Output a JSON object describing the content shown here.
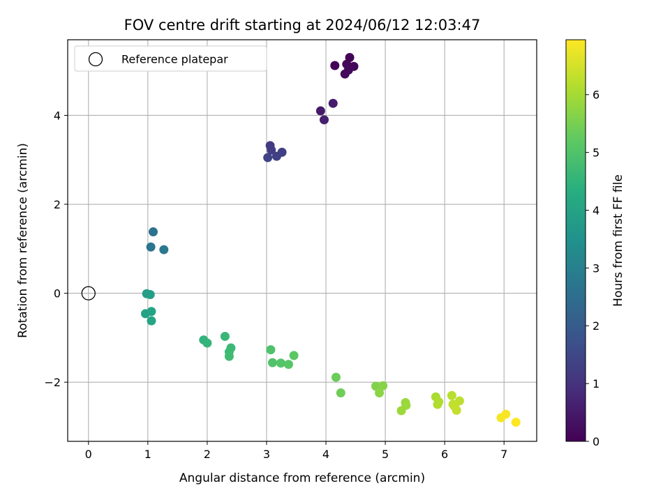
{
  "chart_data": {
    "type": "scatter",
    "title": "FOV centre drift starting at 2024/06/12 12:03:47",
    "xlabel": "Angular distance from reference (arcmin)",
    "ylabel": "Rotation from reference (arcmin)",
    "xlim": [
      -0.35,
      7.55
    ],
    "ylim": [
      -3.33,
      5.7
    ],
    "xticks": [
      0,
      1,
      2,
      3,
      4,
      5,
      6,
      7
    ],
    "yticks": [
      -2,
      0,
      2,
      4
    ],
    "xtick_labels": [
      "0",
      "1",
      "2",
      "3",
      "4",
      "5",
      "6",
      "7"
    ],
    "ytick_labels": [
      "−2",
      "0",
      "2",
      "4"
    ],
    "grid": true,
    "legend": {
      "position": "top-left",
      "entries": [
        "Reference platepar"
      ]
    },
    "reference_point": {
      "name": "Reference platepar",
      "x": 0,
      "y": 0,
      "marker": "hollow-circle"
    },
    "colorbar": {
      "label": "Hours from first FF file",
      "min": 0,
      "max": 6.95,
      "ticks": [
        0,
        1,
        2,
        3,
        4,
        5,
        6
      ],
      "tick_labels": [
        "0",
        "1",
        "2",
        "3",
        "4",
        "5",
        "6"
      ],
      "colormap": "viridis"
    },
    "points": [
      {
        "x": 4.4,
        "y": 5.3,
        "c": 0.05
      },
      {
        "x": 4.15,
        "y": 5.12,
        "c": 0.08
      },
      {
        "x": 4.35,
        "y": 5.15,
        "c": 0.12
      },
      {
        "x": 4.47,
        "y": 5.1,
        "c": 0.1
      },
      {
        "x": 4.38,
        "y": 5.02,
        "c": 0.15
      },
      {
        "x": 4.32,
        "y": 4.93,
        "c": 0.18
      },
      {
        "x": 4.12,
        "y": 4.27,
        "c": 0.55
      },
      {
        "x": 3.91,
        "y": 4.1,
        "c": 0.5
      },
      {
        "x": 3.97,
        "y": 3.9,
        "c": 0.6
      },
      {
        "x": 3.06,
        "y": 3.32,
        "c": 1.2
      },
      {
        "x": 3.08,
        "y": 3.22,
        "c": 1.25
      },
      {
        "x": 3.26,
        "y": 3.17,
        "c": 1.3
      },
      {
        "x": 3.17,
        "y": 3.08,
        "c": 1.35
      },
      {
        "x": 3.02,
        "y": 3.05,
        "c": 1.4
      },
      {
        "x": 1.09,
        "y": 1.38,
        "c": 2.6
      },
      {
        "x": 1.05,
        "y": 1.04,
        "c": 2.7
      },
      {
        "x": 1.27,
        "y": 0.98,
        "c": 2.8
      },
      {
        "x": 0.98,
        "y": -0.01,
        "c": 3.85
      },
      {
        "x": 1.04,
        "y": -0.03,
        "c": 3.9
      },
      {
        "x": 0.96,
        "y": -0.46,
        "c": 3.95
      },
      {
        "x": 1.06,
        "y": -0.41,
        "c": 4.0
      },
      {
        "x": 1.06,
        "y": -0.62,
        "c": 4.05
      },
      {
        "x": 1.94,
        "y": -1.05,
        "c": 4.5
      },
      {
        "x": 2.0,
        "y": -1.12,
        "c": 4.55
      },
      {
        "x": 2.3,
        "y": -0.97,
        "c": 4.6
      },
      {
        "x": 2.4,
        "y": -1.23,
        "c": 4.65
      },
      {
        "x": 2.37,
        "y": -1.32,
        "c": 4.7
      },
      {
        "x": 2.37,
        "y": -1.42,
        "c": 4.75
      },
      {
        "x": 3.07,
        "y": -1.27,
        "c": 4.95
      },
      {
        "x": 3.1,
        "y": -1.56,
        "c": 5.0
      },
      {
        "x": 3.24,
        "y": -1.57,
        "c": 5.05
      },
      {
        "x": 3.37,
        "y": -1.6,
        "c": 5.1
      },
      {
        "x": 3.46,
        "y": -1.4,
        "c": 5.15
      },
      {
        "x": 4.17,
        "y": -1.89,
        "c": 5.35
      },
      {
        "x": 4.25,
        "y": -2.24,
        "c": 5.4
      },
      {
        "x": 4.84,
        "y": -2.09,
        "c": 5.6
      },
      {
        "x": 4.96,
        "y": -2.08,
        "c": 5.65
      },
      {
        "x": 4.9,
        "y": -2.24,
        "c": 5.7
      },
      {
        "x": 5.34,
        "y": -2.46,
        "c": 5.85
      },
      {
        "x": 5.35,
        "y": -2.52,
        "c": 5.88
      },
      {
        "x": 5.27,
        "y": -2.64,
        "c": 5.9
      },
      {
        "x": 5.85,
        "y": -2.33,
        "c": 6.05
      },
      {
        "x": 5.9,
        "y": -2.44,
        "c": 6.1
      },
      {
        "x": 5.88,
        "y": -2.5,
        "c": 6.12
      },
      {
        "x": 6.12,
        "y": -2.3,
        "c": 6.2
      },
      {
        "x": 6.25,
        "y": -2.42,
        "c": 6.25
      },
      {
        "x": 6.14,
        "y": -2.5,
        "c": 6.28
      },
      {
        "x": 6.17,
        "y": -2.55,
        "c": 6.3
      },
      {
        "x": 6.2,
        "y": -2.63,
        "c": 6.33
      },
      {
        "x": 6.95,
        "y": -2.8,
        "c": 6.85
      },
      {
        "x": 7.03,
        "y": -2.72,
        "c": 6.9
      },
      {
        "x": 7.2,
        "y": -2.9,
        "c": 6.95
      }
    ]
  }
}
